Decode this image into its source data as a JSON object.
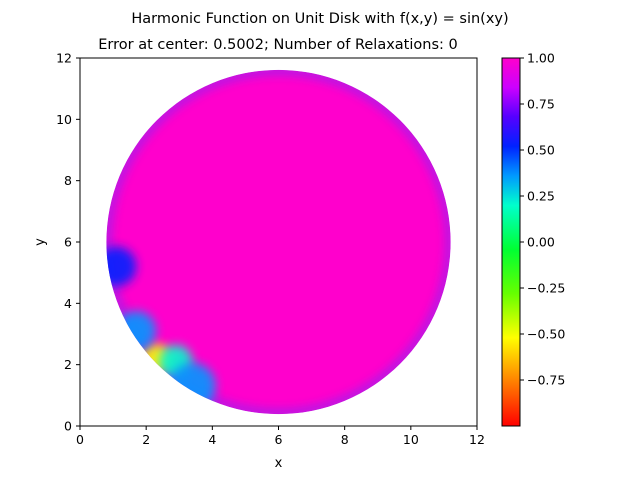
{
  "chart_data": {
    "type": "heatmap",
    "title": "Harmonic Function on Unit Disk with f(x,y) = sin(xy)",
    "subtitle": "Error at center: 0.5002;   Number of Relaxations: 0",
    "xlabel": "x",
    "ylabel": "y",
    "xlim": [
      0,
      12
    ],
    "ylim": [
      0,
      12
    ],
    "x_ticks": [
      "0",
      "2",
      "4",
      "6",
      "8",
      "10",
      "12"
    ],
    "y_ticks": [
      "0",
      "2",
      "4",
      "6",
      "8",
      "10",
      "12"
    ],
    "disk": {
      "center": [
        6,
        6
      ],
      "radius": 5.4
    },
    "interior_value": 1.0,
    "colormap": "gist_rainbow",
    "colorbar": {
      "range": [
        -1.0,
        1.0
      ],
      "ticks": [
        "1.00",
        "0.75",
        "0.50",
        "0.25",
        "0.00",
        "−0.25",
        "−0.50",
        "−0.75"
      ],
      "tick_values": [
        1.0,
        0.75,
        0.5,
        0.25,
        0.0,
        -0.25,
        -0.5,
        -0.75
      ]
    },
    "boundary_features": [
      {
        "x": 2.3,
        "y": 2.2,
        "value": -0.45,
        "spread": 0.45
      },
      {
        "x": 2.9,
        "y": 2.1,
        "value": 0.35,
        "spread": 0.5
      },
      {
        "x": 1.7,
        "y": 3.1,
        "value": 0.4,
        "spread": 0.6
      },
      {
        "x": 1.1,
        "y": 5.2,
        "value": 0.55,
        "spread": 0.6
      },
      {
        "x": 3.4,
        "y": 1.3,
        "value": 0.5,
        "spread": 0.7
      }
    ]
  }
}
